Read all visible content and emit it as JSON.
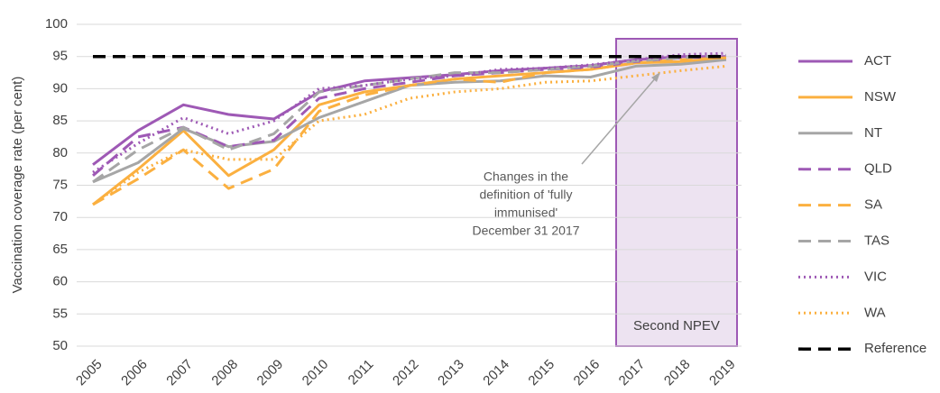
{
  "chart_data": {
    "type": "line",
    "y_label": "Vaccination coverage rate (per cent)",
    "categories": [
      "2005",
      "2006",
      "2007",
      "2008",
      "2009",
      "2010",
      "2011",
      "2012",
      "2013",
      "2014",
      "2015",
      "2016",
      "2017",
      "2018",
      "2019"
    ],
    "ylim": [
      50,
      100
    ],
    "yticks": [
      50,
      55,
      60,
      65,
      70,
      75,
      80,
      85,
      90,
      95,
      100
    ],
    "grid": true,
    "legend": "right",
    "highlight_label": "Second NPEV",
    "annotation": [
      "Changes in the",
      "definition of 'fully",
      "immunised'",
      "December 31 2017"
    ],
    "series": [
      {
        "name": "ACT",
        "color": "#9e59b5",
        "dash": "solid",
        "values": [
          78.2,
          83.5,
          87.5,
          86,
          85.3,
          89.5,
          91.2,
          91.7,
          92.2,
          92.8,
          93.2,
          93.6,
          94.5,
          95,
          95
        ]
      },
      {
        "name": "NSW",
        "color": "#fbb040",
        "dash": "solid",
        "values": [
          72,
          77.5,
          83.5,
          76.5,
          80.5,
          87.5,
          89.5,
          90.5,
          91.5,
          92,
          92.5,
          93,
          94,
          94.2,
          94.8
        ]
      },
      {
        "name": "NT",
        "color": "#a6a6a6",
        "dash": "solid",
        "values": [
          75.5,
          78.5,
          83.8,
          81,
          81.8,
          85.5,
          88,
          90.5,
          91,
          91.2,
          92,
          91.8,
          93.5,
          93.8,
          94.5
        ]
      },
      {
        "name": "QLD",
        "color": "#9e59b5",
        "dash": "dashed",
        "values": [
          76.5,
          82.5,
          84,
          81,
          82,
          88.5,
          90,
          91,
          92,
          92.5,
          93,
          93.3,
          94.2,
          94.8,
          95
        ]
      },
      {
        "name": "SA",
        "color": "#fbb040",
        "dash": "dashed",
        "values": [
          72,
          76,
          80.5,
          74.5,
          77.5,
          86.5,
          89,
          90.5,
          91.5,
          91,
          92.5,
          93,
          94,
          94.5,
          94.8
        ]
      },
      {
        "name": "TAS",
        "color": "#a6a6a6",
        "dash": "dashed",
        "values": [
          75.5,
          80.5,
          84,
          80.5,
          83,
          89.5,
          90.5,
          91.5,
          92.5,
          92.5,
          93,
          93.5,
          94.3,
          94.8,
          95.2
        ]
      },
      {
        "name": "VIC",
        "color": "#9e59b5",
        "dash": "dotted",
        "values": [
          77,
          81.5,
          85.5,
          83,
          85,
          90,
          90.5,
          91.5,
          92,
          93,
          93.2,
          93.7,
          94.5,
          95.3,
          95.5
        ]
      },
      {
        "name": "WA",
        "color": "#fbb040",
        "dash": "dotted",
        "values": [
          72,
          77,
          80.5,
          79,
          79,
          85,
          86,
          88.5,
          89.5,
          90,
          91,
          91.2,
          92,
          92.8,
          93.5
        ]
      },
      {
        "name": "Reference",
        "color": "#000000",
        "dash": "dashed",
        "values": [
          95,
          95,
          95,
          95,
          95,
          95,
          95,
          95,
          95,
          95,
          95,
          95,
          95,
          95,
          95
        ]
      }
    ]
  }
}
